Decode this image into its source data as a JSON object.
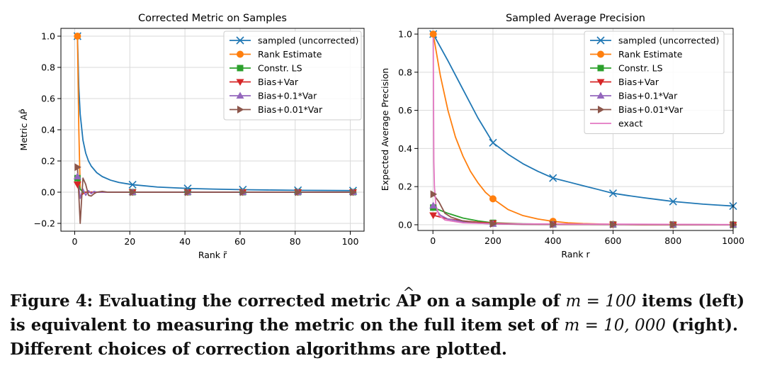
{
  "chart_data": [
    {
      "type": "line",
      "title": "Corrected Metric on Samples",
      "xlabel": "Rank r̃",
      "ylabel": "Metric AP̂",
      "xlim": [
        -5,
        105
      ],
      "ylim": [
        -0.25,
        1.05
      ],
      "xticks": [
        0,
        20,
        40,
        60,
        80,
        100
      ],
      "yticks": [
        -0.2,
        0.0,
        0.2,
        0.4,
        0.6,
        0.8,
        1.0
      ],
      "xtick_labels": [
        "0",
        "20",
        "40",
        "60",
        "80",
        "100"
      ],
      "ytick_labels": [
        "−0.2",
        "0.0",
        "0.2",
        "0.4",
        "0.6",
        "0.8",
        "1.0"
      ],
      "grid": true,
      "legend_position": "top-right",
      "series": [
        {
          "name": "sampled (uncorrected)",
          "color": "#1f77b4",
          "marker": "x",
          "x": [
            1,
            1.5,
            2,
            3,
            4,
            5,
            6,
            8,
            10,
            13,
            16,
            21,
            30,
            41,
            50,
            61,
            70,
            81,
            90,
            101
          ],
          "y": [
            1.0,
            0.67,
            0.5,
            0.333,
            0.25,
            0.2,
            0.167,
            0.125,
            0.1,
            0.077,
            0.0625,
            0.048,
            0.033,
            0.024,
            0.02,
            0.016,
            0.014,
            0.012,
            0.011,
            0.0099
          ],
          "marker_x": [
            1,
            21,
            41,
            61,
            81,
            101
          ]
        },
        {
          "name": "Rank Estimate",
          "color": "#ff7f0e",
          "marker": "o",
          "x": [
            1,
            1.5,
            2,
            3,
            5,
            101
          ],
          "y": [
            1.0,
            0.4,
            0.02,
            0.0,
            0.0,
            0.0
          ],
          "marker_x": [
            1
          ]
        },
        {
          "name": "Constr. LS",
          "color": "#2ca02c",
          "marker": "s",
          "x": [
            1,
            1.5,
            2,
            3,
            5,
            101
          ],
          "y": [
            0.09,
            0.05,
            0.02,
            0.0,
            0.0,
            0.0
          ],
          "marker_x": [
            1,
            21,
            41,
            61,
            81,
            101
          ]
        },
        {
          "name": "Bias+Var",
          "color": "#d62728",
          "marker": "v",
          "x": [
            1,
            2,
            3,
            4,
            5,
            101
          ],
          "y": [
            0.05,
            -0.03,
            -0.01,
            0.0,
            0.0,
            0.0
          ],
          "marker_x": [
            1,
            21,
            41,
            61,
            81,
            101
          ]
        },
        {
          "name": "Bias+0.1*Var",
          "color": "#9467bd",
          "marker": "^",
          "x": [
            1,
            2,
            3,
            4,
            5,
            6,
            7,
            8,
            10,
            12,
            101
          ],
          "y": [
            0.1,
            -0.04,
            0.02,
            -0.02,
            0.01,
            -0.01,
            0.005,
            0.0,
            0.0,
            0.0,
            0.0
          ],
          "marker_x": [
            1,
            21,
            41,
            61,
            81,
            101
          ]
        },
        {
          "name": "Bias+0.01*Var",
          "color": "#8c564b",
          "marker": ">",
          "x": [
            1,
            2,
            2.5,
            3,
            4,
            5,
            6,
            7,
            8,
            10,
            12,
            101
          ],
          "y": [
            0.16,
            -0.2,
            -0.05,
            0.09,
            0.05,
            -0.02,
            -0.025,
            -0.01,
            0.0,
            0.005,
            0.0,
            0.0
          ],
          "marker_x": [
            1,
            21,
            41,
            61,
            81,
            101
          ]
        }
      ]
    },
    {
      "type": "line",
      "title": "Sampled Average Precision",
      "xlabel": "Rank r",
      "ylabel": "Expected Average Precision",
      "xlim": [
        -50,
        1000
      ],
      "ylim": [
        -0.03,
        1.03
      ],
      "xticks": [
        0,
        200,
        400,
        600,
        800,
        1000
      ],
      "yticks": [
        0.0,
        0.2,
        0.4,
        0.6,
        0.8,
        1.0
      ],
      "xtick_labels": [
        "0",
        "200",
        "400",
        "600",
        "800",
        "1000"
      ],
      "ytick_labels": [
        "0.0",
        "0.2",
        "0.4",
        "0.6",
        "0.8",
        "1.0"
      ],
      "grid": true,
      "legend_position": "top-right",
      "series": [
        {
          "name": "sampled (uncorrected)",
          "color": "#1f77b4",
          "marker": "x",
          "x": [
            1,
            50,
            100,
            150,
            200,
            250,
            300,
            350,
            400,
            450,
            500,
            550,
            600,
            650,
            700,
            750,
            800,
            850,
            900,
            950,
            1000
          ],
          "y": [
            1.0,
            0.86,
            0.71,
            0.56,
            0.43,
            0.37,
            0.32,
            0.28,
            0.245,
            0.225,
            0.205,
            0.185,
            0.165,
            0.153,
            0.142,
            0.132,
            0.122,
            0.115,
            0.108,
            0.103,
            0.098
          ],
          "marker_x": [
            1,
            200,
            400,
            600,
            800,
            1000
          ]
        },
        {
          "name": "Rank Estimate",
          "color": "#ff7f0e",
          "marker": "o",
          "x": [
            1,
            25,
            50,
            75,
            100,
            125,
            150,
            175,
            200,
            250,
            300,
            350,
            400,
            450,
            500,
            600,
            700,
            800,
            900,
            1000
          ],
          "y": [
            1.0,
            0.78,
            0.6,
            0.46,
            0.36,
            0.28,
            0.22,
            0.17,
            0.136,
            0.08,
            0.048,
            0.03,
            0.018,
            0.01,
            0.006,
            0.002,
            0.0,
            0.0,
            0.0,
            0.0
          ],
          "marker_x": [
            1,
            200,
            400,
            600,
            800,
            1000
          ]
        },
        {
          "name": "Constr. LS",
          "color": "#2ca02c",
          "marker": "s",
          "x": [
            1,
            50,
            100,
            150,
            200,
            300,
            400,
            1000
          ],
          "y": [
            0.09,
            0.06,
            0.035,
            0.02,
            0.01,
            0.005,
            0.002,
            0.0
          ],
          "marker_x": [
            1,
            200,
            400,
            600,
            800,
            1000
          ]
        },
        {
          "name": "Bias+Var",
          "color": "#d62728",
          "marker": "v",
          "x": [
            1,
            25,
            50,
            100,
            150,
            200,
            300,
            400,
            1000
          ],
          "y": [
            0.05,
            0.04,
            0.03,
            0.02,
            0.013,
            0.008,
            0.004,
            0.002,
            0.0
          ],
          "marker_x": [
            1,
            200,
            400,
            600,
            800,
            1000
          ]
        },
        {
          "name": "Bias+0.1*Var",
          "color": "#9467bd",
          "marker": "^",
          "x": [
            1,
            25,
            50,
            100,
            150,
            200,
            300,
            1000
          ],
          "y": [
            0.1,
            0.05,
            0.03,
            0.015,
            0.008,
            0.004,
            0.002,
            0.0
          ],
          "marker_x": [
            1,
            200,
            400,
            600,
            800,
            1000
          ]
        },
        {
          "name": "Bias+0.01*Var",
          "color": "#8c564b",
          "marker": ">",
          "x": [
            1,
            20,
            40,
            60,
            100,
            150,
            200,
            300,
            1000
          ],
          "y": [
            0.16,
            0.12,
            0.06,
            0.04,
            0.02,
            0.01,
            0.005,
            0.002,
            0.0
          ],
          "marker_x": [
            1,
            200,
            400,
            600,
            800,
            1000
          ]
        },
        {
          "name": "exact",
          "color": "#e377c2",
          "marker": "",
          "x": [
            1,
            3,
            5,
            10,
            20,
            40,
            100,
            200,
            1000
          ],
          "y": [
            1.0,
            0.33,
            0.2,
            0.1,
            0.05,
            0.025,
            0.01,
            0.005,
            0.001
          ],
          "marker_x": []
        }
      ]
    }
  ],
  "caption": {
    "text1": "Figure 4: Evaluating the corrected metric ",
    "ap": "AP",
    "text2": " on a sample of ",
    "m1": "m = 100",
    "text3": " items (left)",
    "line2a": "is equivalent to measuring the metric on the full item set of ",
    "m2": "m = 10, 000",
    "line2b": " (right).",
    "line3": "Different choices of correction algorithms are plotted."
  }
}
